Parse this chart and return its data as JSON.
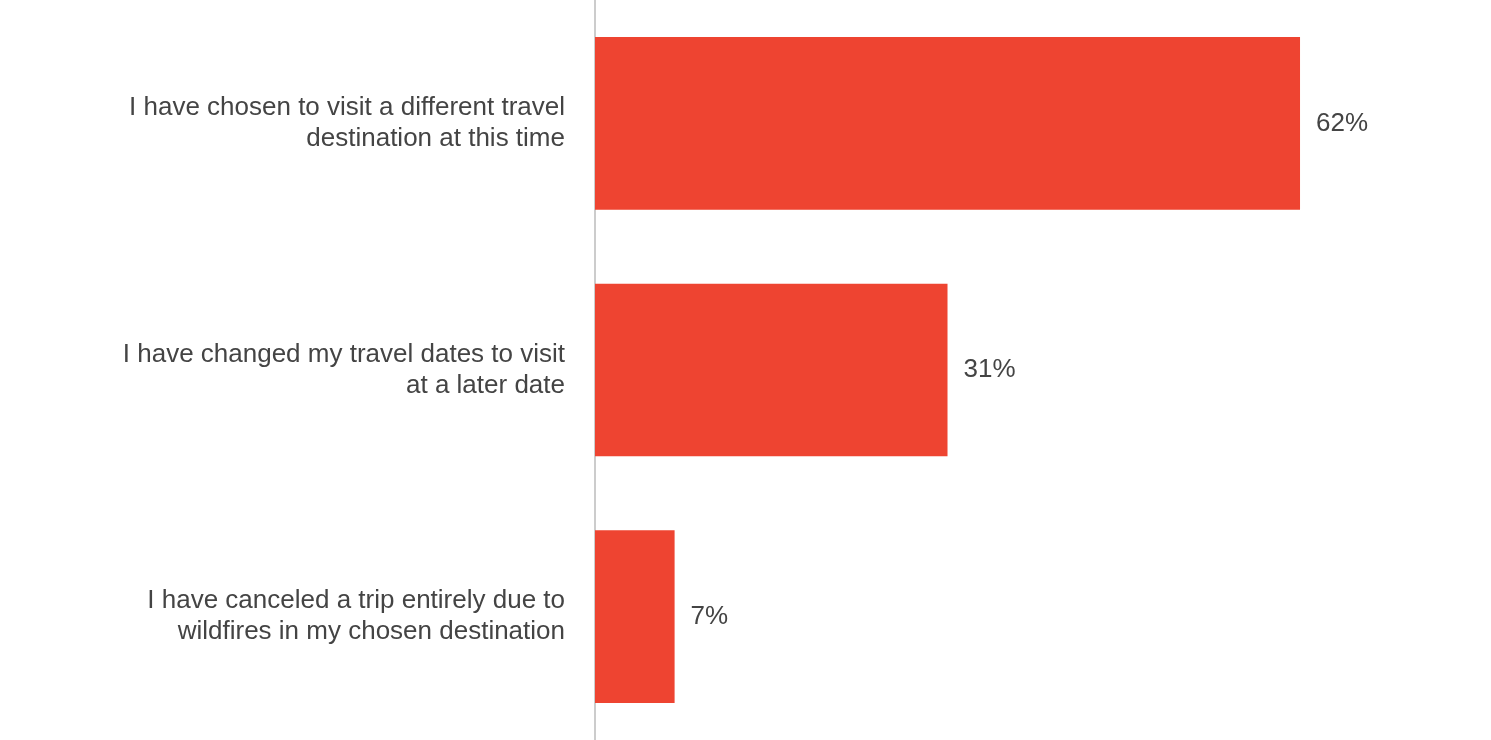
{
  "chart_data": {
    "type": "bar",
    "orientation": "horizontal",
    "categories": [
      "I have chosen to visit a different travel destination at this time",
      "I have changed my travel dates to visit at a later date",
      "I have canceled a trip entirely due to wildfires in my chosen destination"
    ],
    "values": [
      62,
      31,
      7
    ],
    "value_labels": [
      "62%",
      "31%",
      "7%"
    ],
    "color": "#ee4431",
    "tick_labels": "y",
    "legend": false
  }
}
